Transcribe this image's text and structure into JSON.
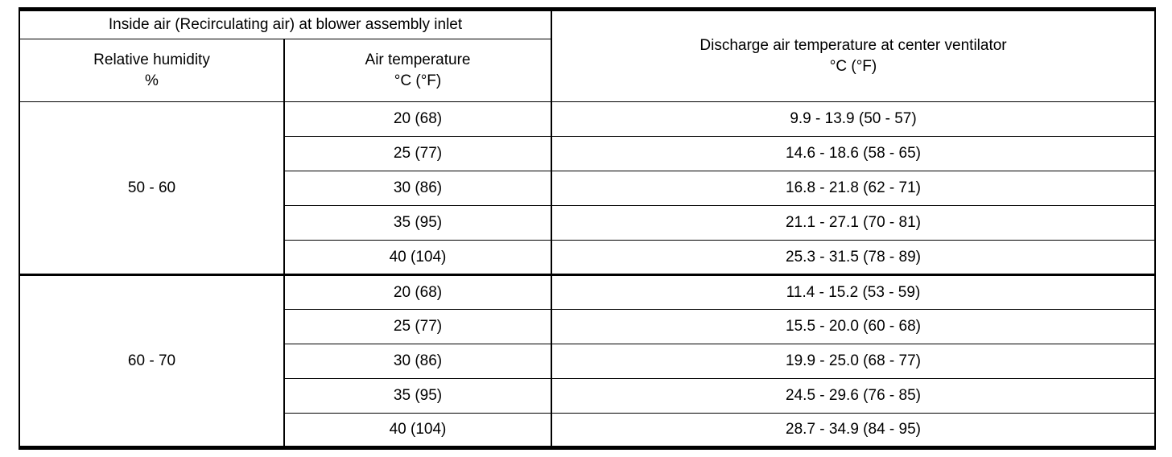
{
  "table": {
    "header": {
      "inside_air_title": "Inside air (Recirculating air) at blower assembly inlet",
      "humidity": {
        "line1": "Relative humidity",
        "line2": "%"
      },
      "air_temp": {
        "line1": "Air temperature",
        "line2": "°C (°F)"
      },
      "discharge": {
        "line1": "Discharge air temperature at center ventilator",
        "line2": "°C (°F)"
      }
    },
    "groups": [
      {
        "humidity": "50 - 60",
        "rows": [
          {
            "air_temp": "20 (68)",
            "discharge": "9.9 - 13.9 (50 - 57)"
          },
          {
            "air_temp": "25 (77)",
            "discharge": "14.6 - 18.6 (58 - 65)"
          },
          {
            "air_temp": "30 (86)",
            "discharge": "16.8 - 21.8 (62 - 71)"
          },
          {
            "air_temp": "35 (95)",
            "discharge": "21.1 - 27.1 (70 - 81)"
          },
          {
            "air_temp": "40 (104)",
            "discharge": "25.3 - 31.5 (78 - 89)"
          }
        ]
      },
      {
        "humidity": "60 - 70",
        "rows": [
          {
            "air_temp": "20 (68)",
            "discharge": "11.4 - 15.2 (53 - 59)"
          },
          {
            "air_temp": "25 (77)",
            "discharge": "15.5 - 20.0 (60 - 68)"
          },
          {
            "air_temp": "30 (86)",
            "discharge": "19.9 - 25.0 (68 - 77)"
          },
          {
            "air_temp": "35 (95)",
            "discharge": "24.5 - 29.6 (76 - 85)"
          },
          {
            "air_temp": "40 (104)",
            "discharge": "28.7 - 34.9 (84 - 95)"
          }
        ]
      }
    ]
  }
}
